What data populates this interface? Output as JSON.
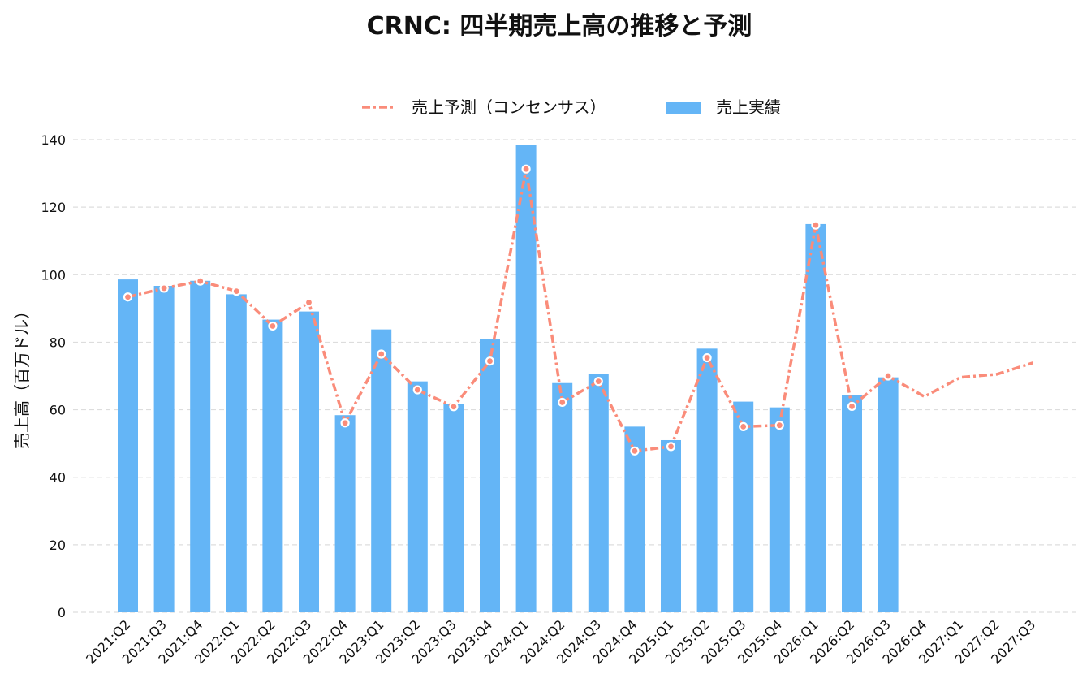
{
  "chart_data": {
    "type": "bar",
    "title": "CRNC: 四半期売上高の推移と予測",
    "ylabel": "売上高（百万ドル）",
    "xlabel": "",
    "ylim": [
      0,
      140
    ],
    "yticks": [
      0,
      20,
      40,
      60,
      80,
      100,
      120,
      140
    ],
    "grid": true,
    "legend_position": "top",
    "categories": [
      "2021:Q2",
      "2021:Q3",
      "2021:Q4",
      "2022:Q1",
      "2022:Q2",
      "2022:Q3",
      "2022:Q4",
      "2023:Q1",
      "2023:Q2",
      "2023:Q3",
      "2023:Q4",
      "2024:Q1",
      "2024:Q2",
      "2024:Q3",
      "2024:Q4",
      "2025:Q1",
      "2025:Q2",
      "2025:Q3",
      "2025:Q4",
      "2026:Q1",
      "2026:Q2",
      "2026:Q3",
      "2026:Q4",
      "2027:Q1",
      "2027:Q2",
      "2027:Q3"
    ],
    "series": [
      {
        "name": "売上実績",
        "type": "bar",
        "color": "#64b5f6",
        "values": [
          98.6,
          96.7,
          98.2,
          94.2,
          86.7,
          89.1,
          58.4,
          83.8,
          68.4,
          61.6,
          80.9,
          138.4,
          67.9,
          70.6,
          55.0,
          51.0,
          78.1,
          62.4,
          60.7,
          115.0,
          64.4,
          69.6,
          null,
          null,
          null,
          null
        ]
      },
      {
        "name": "売上予測（コンセンサス）",
        "type": "line",
        "color": "#fa8c7a",
        "style": "dashed",
        "values": [
          93.4,
          96.0,
          98.1,
          95.1,
          84.8,
          91.8,
          56.1,
          76.5,
          65.9,
          60.9,
          74.4,
          131.3,
          62.2,
          68.4,
          47.8,
          49.1,
          75.4,
          55.0,
          55.4,
          114.7,
          61.0,
          70.0,
          63.9,
          69.6,
          70.5,
          73.9
        ],
        "markers": [
          true,
          true,
          true,
          true,
          true,
          true,
          true,
          true,
          true,
          true,
          true,
          true,
          true,
          true,
          true,
          true,
          true,
          true,
          true,
          true,
          true,
          true,
          false,
          false,
          false,
          false
        ]
      }
    ]
  }
}
